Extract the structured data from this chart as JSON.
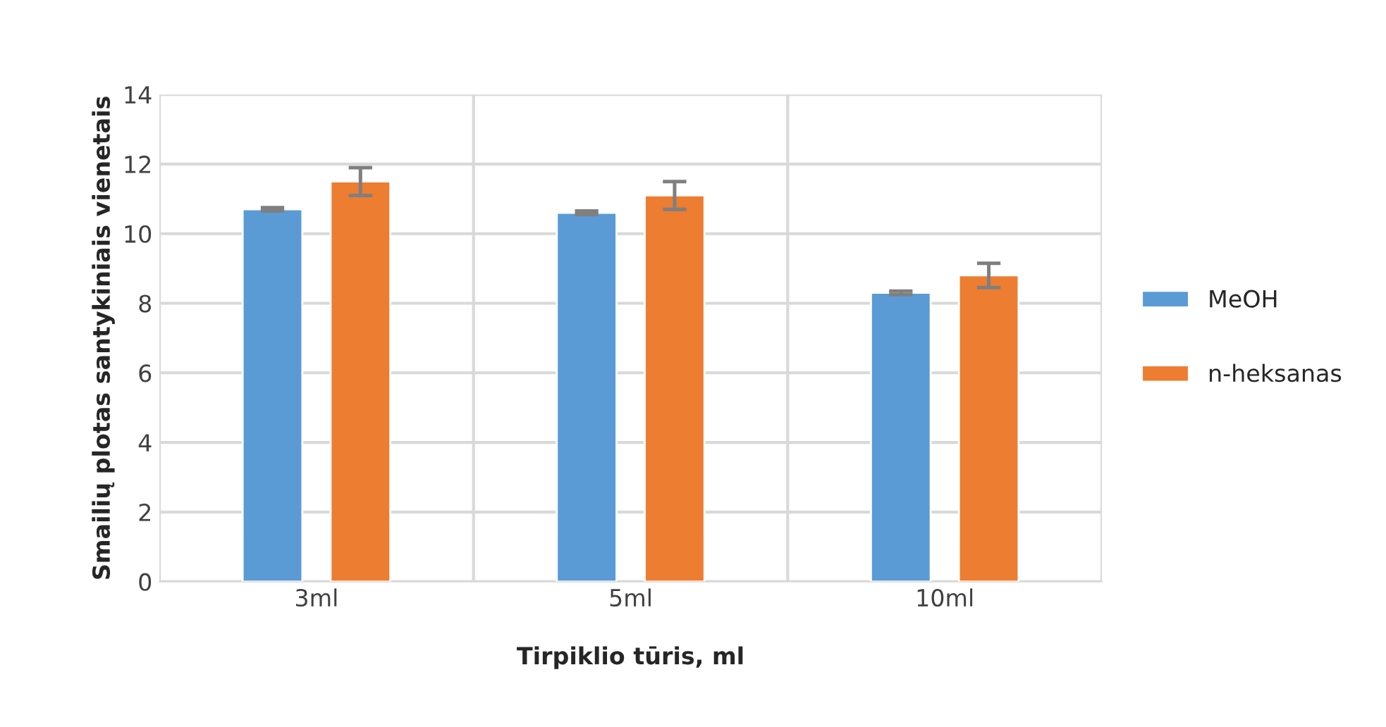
{
  "chart_data": {
    "type": "bar",
    "xlabel": "Tirpiklio tūris, ml",
    "ylabel": "Smailių plotas santykiniais vienetais",
    "categories": [
      "3ml",
      "5ml",
      "10ml"
    ],
    "series": [
      {
        "name": "MeOH",
        "color": "#5b9bd5",
        "values": [
          10.7,
          10.6,
          8.3
        ],
        "errors": [
          0.05,
          0.05,
          0.05
        ]
      },
      {
        "name": "n-heksanas",
        "color": "#ed7d31",
        "values": [
          11.5,
          11.1,
          8.8
        ],
        "errors": [
          0.4,
          0.4,
          0.35
        ]
      }
    ],
    "ylim": [
      0,
      14
    ],
    "yticks": [
      0,
      2,
      4,
      6,
      8,
      10,
      12,
      14
    ],
    "grid": true,
    "legend": "right"
  }
}
